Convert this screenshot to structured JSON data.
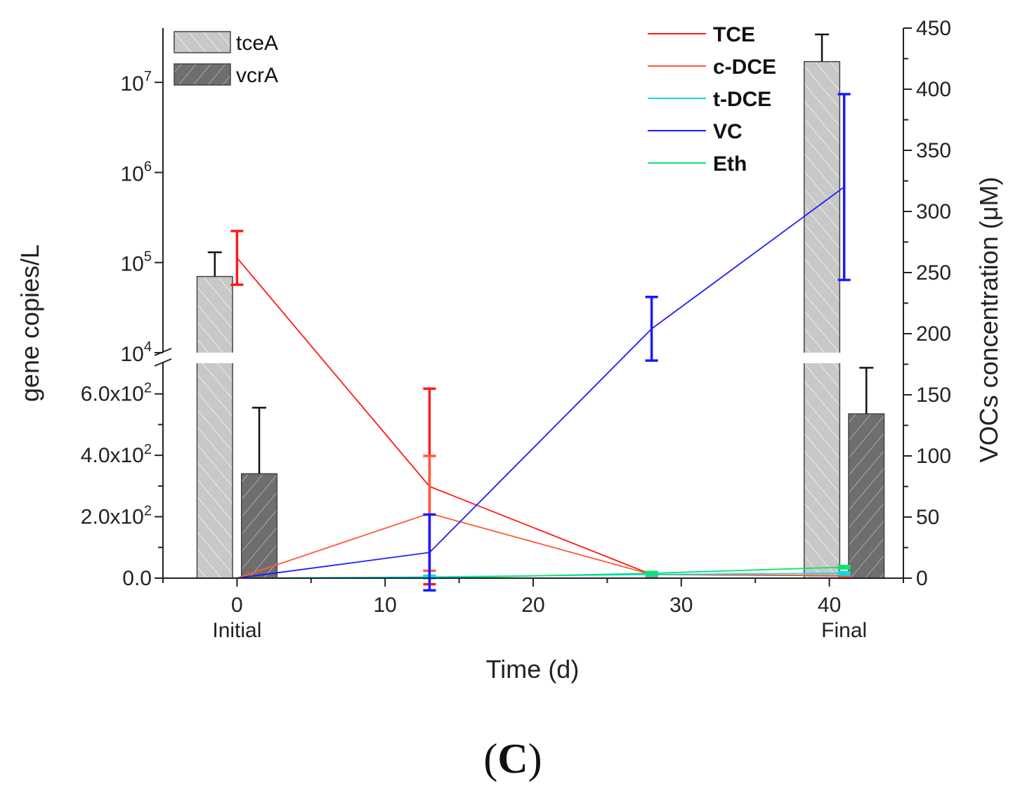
{
  "chart_data": {
    "type": "bar+line",
    "panel_label": {
      "open": "(",
      "letter": "C",
      "close": ")"
    },
    "xlabel": "Time (d)",
    "ylabel_left": "gene copies/L",
    "ylabel_right": "VOCs concentration (μM)",
    "xlim": [
      -5,
      45
    ],
    "x_ticks": [
      "0",
      "10",
      "20",
      "30",
      "40"
    ],
    "x_tick_values": [
      0,
      10,
      20,
      30,
      40
    ],
    "x_category_labels": [
      {
        "label": "Initial",
        "x": 0
      },
      {
        "label": "Final",
        "x": 41
      }
    ],
    "left_axis_linear": {
      "range": [
        0,
        700
      ],
      "ticks": [
        {
          "value": 0,
          "mantissa": "0.0",
          "exp": ""
        },
        {
          "value": 200,
          "mantissa": "2.0x10",
          "exp": "2"
        },
        {
          "value": 400,
          "mantissa": "4.0x10",
          "exp": "2"
        },
        {
          "value": 600,
          "mantissa": "6.0x10",
          "exp": "2"
        }
      ]
    },
    "left_axis_log": {
      "range": [
        10000,
        40000000
      ],
      "ticks": [
        {
          "value": 10000,
          "base": "10",
          "exp": "4"
        },
        {
          "value": 100000,
          "base": "10",
          "exp": "5"
        },
        {
          "value": 1000000,
          "base": "10",
          "exp": "6"
        },
        {
          "value": 10000000,
          "base": "10",
          "exp": "7"
        }
      ]
    },
    "right_axis": {
      "range": [
        0,
        450
      ],
      "ticks": [
        "0",
        "50",
        "100",
        "150",
        "200",
        "250",
        "300",
        "350",
        "400",
        "450"
      ]
    },
    "bars": [
      {
        "series": "tceA",
        "group": "Initial",
        "x": -1.5,
        "value": 70000,
        "error": 60000
      },
      {
        "series": "vcrA",
        "group": "Initial",
        "x": 1.5,
        "value": 340,
        "error": 215
      },
      {
        "series": "tceA",
        "group": "Final",
        "x": 39.5,
        "value": 17000000,
        "error": 17000000
      },
      {
        "series": "vcrA",
        "group": "Final",
        "x": 42.5,
        "value": 535,
        "error": 150
      }
    ],
    "bar_series": [
      {
        "name": "tceA",
        "color": "#c8c8c8"
      },
      {
        "name": "vcrA",
        "color": "#6e6e6e"
      }
    ],
    "series": [
      {
        "name": "TCE",
        "color": "#ff1a1a",
        "x": [
          0,
          13,
          28,
          41
        ],
        "values": [
          262,
          75,
          3,
          2
        ],
        "errors": [
          22,
          80,
          1,
          1
        ]
      },
      {
        "name": "c-DCE",
        "color": "#ff5a3a",
        "x": [
          0,
          13,
          28,
          41
        ],
        "values": [
          0,
          53,
          3,
          2
        ],
        "errors": [
          0,
          47,
          2,
          1
        ]
      },
      {
        "name": "t-DCE",
        "color": "#10d8e8",
        "x": [
          0,
          13,
          28,
          41
        ],
        "values": [
          0,
          1,
          3,
          4
        ],
        "errors": [
          0,
          1,
          1,
          1
        ]
      },
      {
        "name": "VC",
        "color": "#1a1aff",
        "x": [
          0,
          13,
          28,
          41
        ],
        "values": [
          0,
          21,
          204,
          320
        ],
        "errors": [
          0,
          31,
          26,
          76
        ]
      },
      {
        "name": "Eth",
        "color": "#10e070",
        "x": [
          0,
          13,
          28,
          41
        ],
        "values": [
          0,
          0,
          4,
          9
        ],
        "errors": [
          0,
          0,
          1,
          1
        ]
      }
    ]
  }
}
